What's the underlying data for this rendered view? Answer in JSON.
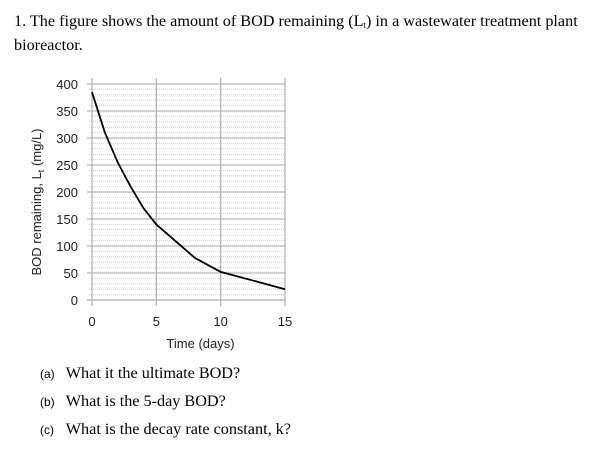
{
  "question": {
    "number": "1.",
    "text_before": "The figure shows the amount of BOD remaining (L",
    "subscript": "t",
    "text_after": ") in a wastewater treatment plant bioreactor."
  },
  "parts": [
    {
      "label": "(a)",
      "text": "What it the ultimate BOD?"
    },
    {
      "label": "(b)",
      "text": "What is the 5-day BOD?"
    },
    {
      "label": "(c)",
      "text": "What is the decay rate constant, k?"
    }
  ],
  "chart_data": {
    "type": "line",
    "title": "",
    "xlabel": "Time (days)",
    "ylabel": "BOD remaining, L",
    "ylabel_subscript": "t",
    "ylabel_units": " (mg/L)",
    "xlim": [
      0,
      15
    ],
    "ylim": [
      0,
      400
    ],
    "xticks": [
      0,
      5,
      10,
      15
    ],
    "yticks": [
      0,
      50,
      100,
      150,
      200,
      250,
      300,
      350,
      400
    ],
    "grid": {
      "major_x": true,
      "minor_y_step": 10,
      "major_y_step": 50
    },
    "legend": null,
    "series": [
      {
        "name": "BOD remaining",
        "color": "#000000",
        "x": [
          0,
          1,
          2,
          3,
          4,
          5,
          8,
          10,
          15
        ],
        "y": [
          385,
          310,
          255,
          210,
          170,
          140,
          78,
          52,
          20
        ]
      }
    ]
  }
}
